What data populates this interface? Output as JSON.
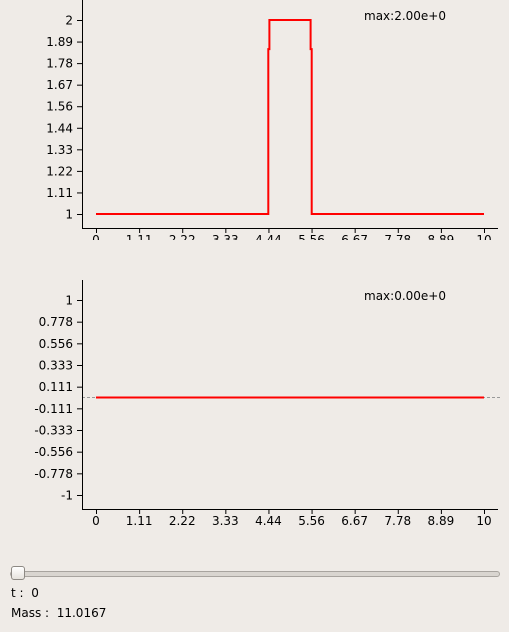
{
  "colors": {
    "series": "#ff0000",
    "axis": "#000000",
    "zero_line": "#999999",
    "background": "#efebe7"
  },
  "chart_data": [
    {
      "type": "line",
      "max_label": "max:2.00e+0",
      "xticks": [
        "0",
        "1.11",
        "2.22",
        "3.33",
        "4.44",
        "5.56",
        "6.67",
        "7.78",
        "8.89",
        "10"
      ],
      "yticks": [
        "1",
        "1.11",
        "1.22",
        "1.33",
        "1.44",
        "1.56",
        "1.67",
        "1.78",
        "1.89",
        "2"
      ],
      "xlim": [
        0,
        10
      ],
      "ylim": [
        1,
        2
      ],
      "series": [
        {
          "x": [
            0,
            4.44,
            4.44,
            4.47,
            4.47,
            5.53,
            5.53,
            5.56,
            5.56,
            10
          ],
          "y": [
            1,
            1,
            1.85,
            1.85,
            2,
            2,
            1.85,
            1.85,
            1,
            1
          ]
        }
      ]
    },
    {
      "type": "line",
      "max_label": "max:0.00e+0",
      "xticks": [
        "0",
        "1.11",
        "2.22",
        "3.33",
        "4.44",
        "5.56",
        "6.67",
        "7.78",
        "8.89",
        "10"
      ],
      "yticks": [
        "-1",
        "-0.778",
        "-0.556",
        "-0.333",
        "-0.111",
        "0.111",
        "0.333",
        "0.556",
        "0.778",
        "1"
      ],
      "xlim": [
        0,
        10
      ],
      "ylim": [
        -1,
        1
      ],
      "series": [
        {
          "x": [
            0,
            10
          ],
          "y": [
            0,
            0
          ]
        }
      ]
    }
  ],
  "controls": {
    "slider_value": 0,
    "t_label": "t :",
    "t_value": "0",
    "mass_label": "Mass :",
    "mass_value": "11.0167"
  }
}
